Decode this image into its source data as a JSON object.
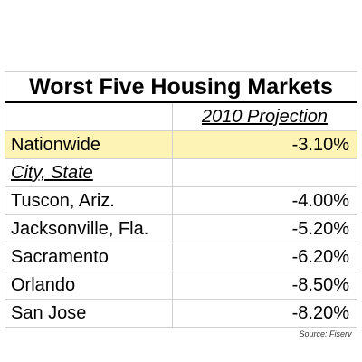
{
  "chart_data": {
    "type": "table",
    "title": "Worst Five Housing Markets",
    "column_header": "2010 Projection",
    "nationwide": {
      "label": "Nationwide",
      "value": "-3.10%"
    },
    "subheader": "City, State",
    "rows": [
      {
        "label": "Tuscon, Ariz.",
        "value": "-4.00%"
      },
      {
        "label": "Jacksonville, Fla.",
        "value": "-5.20%"
      },
      {
        "label": "Sacramento",
        "value": "-6.20%"
      },
      {
        "label": "Orlando",
        "value": "-8.50%"
      },
      {
        "label": "San Jose",
        "value": "-8.20%"
      }
    ],
    "source": "Source: Fiserv",
    "highlight_color": "#fdf3b4"
  }
}
